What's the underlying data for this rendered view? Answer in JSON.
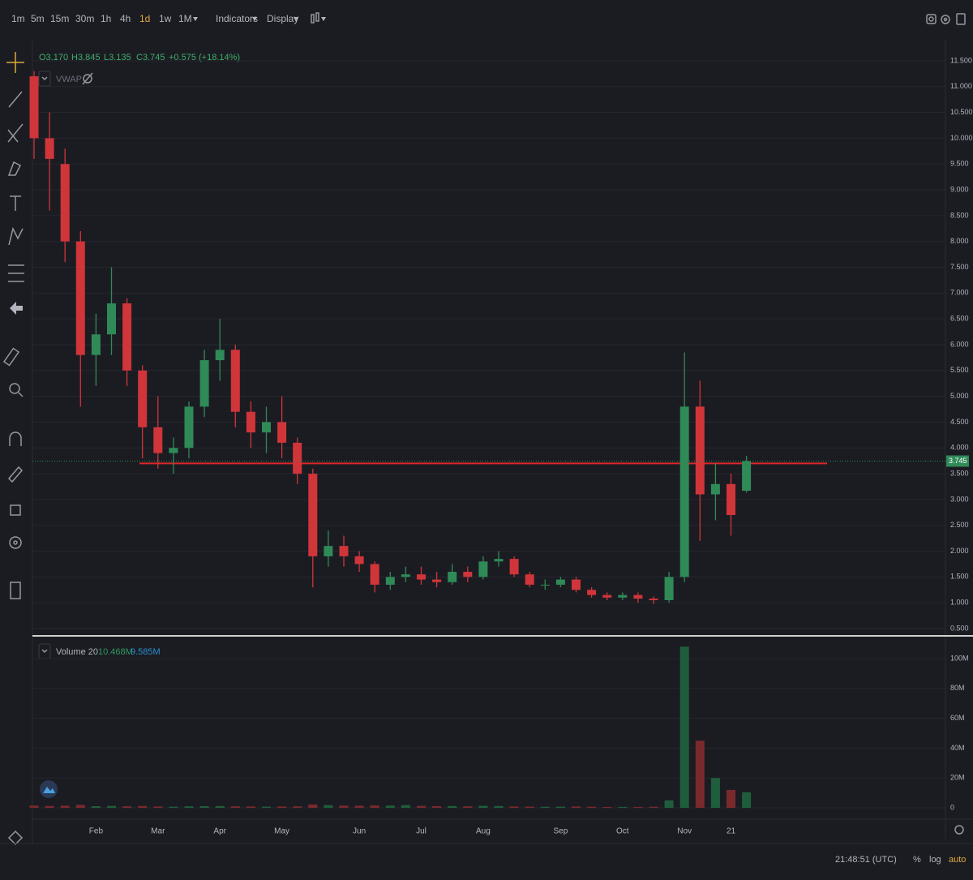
{
  "toolbar": {
    "intervals": [
      "1m",
      "5m",
      "15m",
      "30m",
      "1h",
      "4h",
      "1d",
      "1w",
      "1M"
    ],
    "active_interval": 6,
    "indicators": "Indicators",
    "display": "Display"
  },
  "legend": {
    "ohlc": [
      "O3.170",
      "H3.845",
      "L3.135",
      "C3.745",
      "+0.575 (+18.14%)"
    ],
    "vwap": "VWAP"
  },
  "volume_legend": {
    "name": "Volume 20",
    "value": "10.468M",
    "ma": "9.585M"
  },
  "footer": {
    "time": "21:48:51 (UTC)",
    "percent": "%",
    "log": "log",
    "auto": "auto"
  },
  "chart_data": [
    {
      "type": "candlestick",
      "categories": [
        null,
        null,
        null,
        null,
        "Feb",
        null,
        null,
        null,
        "Mar",
        null,
        null,
        null,
        "Apr",
        null,
        null,
        null,
        "May",
        null,
        null,
        null,
        null,
        "Jun",
        null,
        null,
        null,
        "Jul",
        null,
        null,
        null,
        "Aug",
        null,
        null,
        null,
        null,
        "Sep",
        null,
        null,
        null,
        "Oct",
        null,
        null,
        null,
        "Nov",
        null,
        null,
        "21",
        null
      ],
      "open": [
        11.2,
        10.0,
        9.5,
        8.0,
        5.8,
        6.2,
        6.8,
        5.5,
        4.4,
        3.9,
        4.0,
        4.8,
        5.7,
        5.9,
        4.7,
        4.3,
        4.5,
        4.1,
        3.5,
        1.9,
        2.1,
        1.9,
        1.75,
        1.35,
        1.5,
        1.55,
        1.45,
        1.4,
        1.6,
        1.5,
        1.8,
        1.85,
        1.55,
        1.35,
        1.35,
        1.45,
        1.25,
        1.15,
        1.1,
        1.15,
        1.08,
        1.05,
        1.5,
        4.8,
        3.1,
        3.3,
        3.17
      ],
      "high": [
        11.3,
        10.5,
        9.8,
        8.2,
        6.6,
        7.5,
        6.9,
        5.6,
        5.0,
        4.2,
        4.9,
        5.9,
        6.5,
        6.0,
        4.9,
        4.8,
        5.0,
        4.2,
        3.6,
        2.4,
        2.3,
        2.0,
        1.8,
        1.6,
        1.7,
        1.7,
        1.6,
        1.75,
        1.7,
        1.9,
        2.0,
        1.9,
        1.6,
        1.45,
        1.5,
        1.5,
        1.3,
        1.2,
        1.2,
        1.2,
        1.12,
        1.6,
        5.85,
        5.3,
        3.7,
        3.5,
        3.845
      ],
      "low": [
        9.6,
        8.6,
        7.6,
        4.8,
        5.2,
        5.8,
        5.2,
        3.8,
        3.6,
        3.5,
        3.8,
        4.6,
        5.3,
        4.4,
        4.0,
        3.9,
        3.8,
        3.3,
        1.3,
        1.7,
        1.7,
        1.6,
        1.2,
        1.25,
        1.4,
        1.35,
        1.3,
        1.35,
        1.4,
        1.45,
        1.7,
        1.5,
        1.3,
        1.25,
        1.3,
        1.2,
        1.1,
        1.05,
        1.05,
        1.0,
        0.98,
        1.0,
        1.4,
        2.2,
        2.6,
        2.3,
        3.135
      ],
      "close": [
        10.0,
        9.6,
        8.0,
        5.8,
        6.2,
        6.8,
        5.5,
        4.4,
        3.9,
        4.0,
        4.8,
        5.7,
        5.9,
        4.7,
        4.3,
        4.5,
        4.1,
        3.5,
        1.9,
        2.1,
        1.9,
        1.75,
        1.35,
        1.5,
        1.55,
        1.45,
        1.4,
        1.6,
        1.5,
        1.8,
        1.85,
        1.55,
        1.35,
        1.35,
        1.45,
        1.25,
        1.15,
        1.1,
        1.15,
        1.08,
        1.05,
        1.5,
        4.8,
        3.1,
        3.3,
        2.7,
        3.745
      ],
      "up_color": "#2f8a57",
      "down_color": "#d0353a",
      "horizontal_line": 3.7,
      "line_color": "#e0262b",
      "ylim": [
        0.39,
        11.735
      ],
      "yticks": [
        {
          "value": 0.5,
          "label": "0.500"
        },
        {
          "value": 1,
          "label": "1.000"
        },
        {
          "value": 1.5,
          "label": "1.500"
        },
        {
          "value": 2,
          "label": "2.000"
        },
        {
          "value": 2.5,
          "label": "2.500"
        },
        {
          "value": 3,
          "label": "3.000"
        },
        {
          "value": 3.5,
          "label": "3.500"
        },
        {
          "value": 4,
          "label": "4.000"
        },
        {
          "value": 4.5,
          "label": "4.500"
        },
        {
          "value": 5,
          "label": "5.000"
        },
        {
          "value": 5.5,
          "label": "5.500"
        },
        {
          "value": 6,
          "label": "6.000"
        },
        {
          "value": 6.5,
          "label": "6.500"
        },
        {
          "value": 7,
          "label": "7.000"
        },
        {
          "value": 7.5,
          "label": "7.500"
        },
        {
          "value": 8,
          "label": "8.000"
        },
        {
          "value": 8.5,
          "label": "8.500"
        },
        {
          "value": 9,
          "label": "9.000"
        },
        {
          "value": 9.5,
          "label": "9.500"
        },
        {
          "value": 10,
          "label": "10.000"
        },
        {
          "value": 10.5,
          "label": "10.500"
        },
        {
          "value": 11,
          "label": "11.000"
        },
        {
          "value": 11.5,
          "label": "11.500"
        }
      ],
      "grid": true
    },
    {
      "type": "bar",
      "values": [
        1.5,
        1.2,
        1.4,
        2.0,
        1.1,
        1.3,
        1.0,
        1.2,
        0.9,
        0.8,
        1.0,
        1.1,
        1.2,
        1.0,
        0.9,
        0.8,
        0.9,
        1.0,
        2.2,
        1.8,
        1.5,
        1.4,
        1.6,
        1.5,
        1.8,
        1.3,
        1.1,
        1.2,
        1.0,
        1.3,
        1.2,
        0.9,
        0.8,
        0.7,
        0.8,
        0.9,
        0.7,
        0.6,
        0.6,
        0.6,
        0.7,
        5.0,
        108,
        45,
        20,
        12,
        10.468
      ],
      "ylim": [
        -3.8,
        112
      ],
      "yticks": [
        0,
        {
          "value": 20,
          "label": "20M"
        },
        {
          "value": 40,
          "label": "40M"
        },
        {
          "value": 60,
          "label": "60M"
        },
        {
          "value": 80,
          "label": "80M"
        },
        {
          "value": 100,
          "label": "100M"
        }
      ],
      "up_color": "#1f5e3c",
      "down_color": "#7a2a2d",
      "grid": true
    }
  ]
}
